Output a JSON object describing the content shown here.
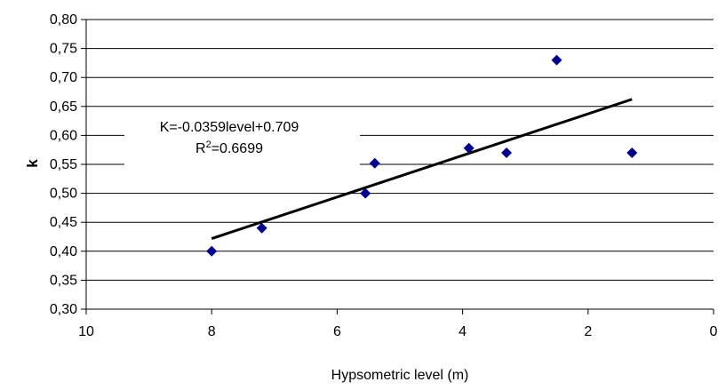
{
  "chart_data": {
    "type": "scatter",
    "xlabel": "Hypsometric level (m)",
    "ylabel": "k",
    "xlim": [
      10,
      0
    ],
    "ylim": [
      0.3,
      0.8
    ],
    "x_ticks": [
      "10",
      "8",
      "6",
      "4",
      "2",
      "0"
    ],
    "y_ticks": [
      "0,30",
      "0,35",
      "0,40",
      "0,45",
      "0,50",
      "0,55",
      "0,60",
      "0,65",
      "0,70",
      "0,75",
      "0,80"
    ],
    "grid": "horizontal",
    "marker_color": "#00008b",
    "points": [
      {
        "x": 8.0,
        "y": 0.4
      },
      {
        "x": 7.2,
        "y": 0.44
      },
      {
        "x": 5.55,
        "y": 0.5
      },
      {
        "x": 5.4,
        "y": 0.552
      },
      {
        "x": 3.9,
        "y": 0.578
      },
      {
        "x": 3.3,
        "y": 0.57
      },
      {
        "x": 2.5,
        "y": 0.73
      },
      {
        "x": 1.3,
        "y": 0.57
      }
    ],
    "trendline": {
      "equation": "K=-0.0359level+0.709",
      "r2_label": "R",
      "r2_sup": "2",
      "r2_value": "=0.6699",
      "x_range": [
        8.0,
        1.3
      ]
    }
  }
}
